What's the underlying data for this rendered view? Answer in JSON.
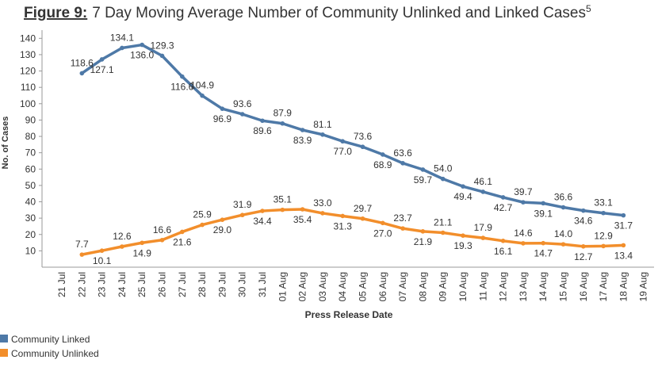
{
  "chart_data": {
    "type": "line",
    "title_label": "Figure 9:",
    "title": "7 Day Moving Average Number of Community Unlinked and Linked Cases",
    "title_superscript": "5",
    "x_label": "Press Release Date",
    "y_label": "No. of Cases",
    "categories": [
      "21 Jul",
      "22 Jul",
      "23 Jul",
      "24 Jul",
      "25 Jul",
      "26 Jul",
      "27 Jul",
      "28 Jul",
      "29 Jul",
      "30 Jul",
      "31 Jul",
      "01 Aug",
      "02 Aug",
      "03 Aug",
      "04 Aug",
      "05 Aug",
      "06 Aug",
      "07 Aug",
      "08 Aug",
      "09 Aug",
      "10 Aug",
      "11 Aug",
      "12 Aug",
      "13 Aug",
      "14 Aug",
      "15 Aug",
      "16 Aug",
      "17 Aug",
      "18 Aug",
      "19 Aug"
    ],
    "series": [
      {
        "name": "Community Linked",
        "color": "#4e79a7",
        "values": [
          null,
          118.6,
          127.1,
          134.1,
          136.0,
          129.3,
          116.6,
          104.9,
          96.9,
          93.6,
          89.6,
          87.9,
          83.9,
          81.1,
          77.0,
          73.6,
          68.9,
          63.6,
          59.7,
          54.0,
          49.4,
          46.1,
          42.7,
          39.7,
          39.1,
          36.6,
          34.6,
          33.1,
          31.7,
          null
        ],
        "value_labels": [
          null,
          "118.6",
          "127.1",
          "134.1",
          "136.0",
          "129.3",
          "116.6",
          "104.9",
          "96.9",
          "93.6",
          "89.6",
          "87.9",
          "83.9",
          "81.1",
          "77.0",
          "73.6",
          "68.9",
          "63.6",
          "59.7",
          "54.0",
          "49.4",
          "46.1",
          "42.7",
          "39.7",
          "39.1",
          "36.6",
          "34.6",
          "33.1",
          "31.7",
          null
        ]
      },
      {
        "name": "Community Unlinked",
        "color": "#f28e2b",
        "values": [
          null,
          7.7,
          10.1,
          12.6,
          14.9,
          16.6,
          21.6,
          25.9,
          29.0,
          31.9,
          34.4,
          35.1,
          35.4,
          33.0,
          31.3,
          29.7,
          27.0,
          23.7,
          21.9,
          21.1,
          19.3,
          17.9,
          16.1,
          14.6,
          14.7,
          14.0,
          12.7,
          12.9,
          13.4,
          null
        ],
        "value_labels": [
          null,
          "7.7",
          "10.1",
          "12.6",
          "14.9",
          "16.6",
          "21.6",
          "25.9",
          "29.0",
          "31.9",
          "34.4",
          "35.1",
          "35.4",
          "33.0",
          "31.3",
          "29.7",
          "27.0",
          "23.7",
          "21.9",
          "21.1",
          "19.3",
          "17.9",
          "16.1",
          "14.6",
          "14.7",
          "14.0",
          "12.7",
          "12.9",
          "13.4",
          null
        ]
      }
    ],
    "ylim": [
      0,
      145
    ],
    "yticks": [
      10,
      20,
      30,
      40,
      50,
      60,
      70,
      80,
      90,
      100,
      110,
      120,
      130,
      140
    ],
    "grid": false
  }
}
